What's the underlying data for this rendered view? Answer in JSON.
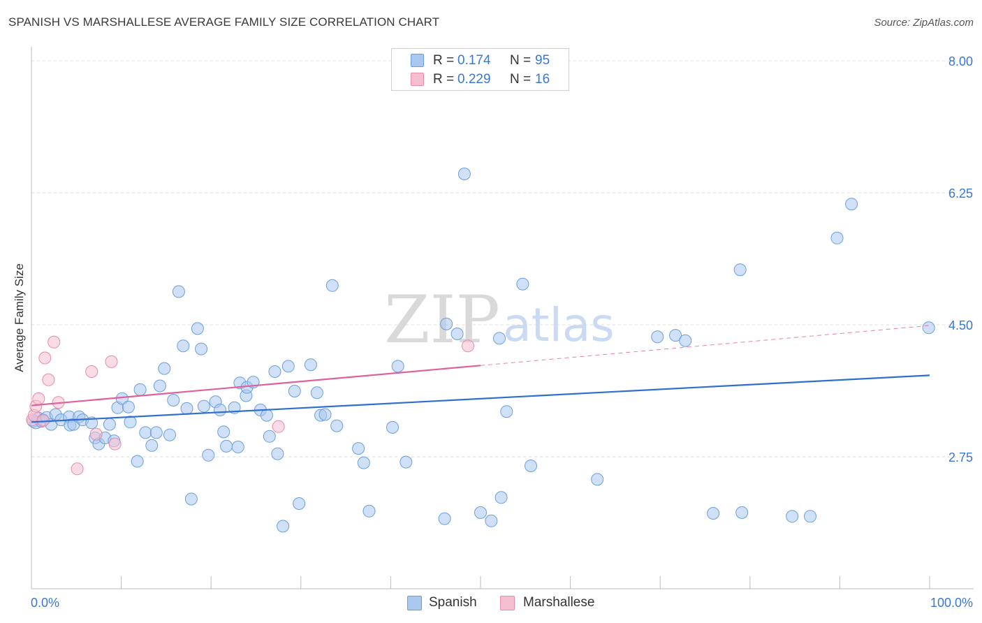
{
  "header": {
    "title": "SPANISH VS MARSHALLESE AVERAGE FAMILY SIZE CORRELATION CHART",
    "source": "Source: ZipAtlas.com"
  },
  "watermark": {
    "part1": "ZIP",
    "part2": "atlas"
  },
  "legend_top": {
    "rows": [
      {
        "r_label": "R =",
        "r_value": "0.174",
        "n_label": "N =",
        "n_value": "95"
      },
      {
        "r_label": "R =",
        "r_value": "0.229",
        "n_label": "N =",
        "n_value": "16"
      }
    ]
  },
  "legend_bottom": {
    "items": [
      {
        "label": "Spanish"
      },
      {
        "label": "Marshallese"
      }
    ]
  },
  "colors": {
    "spanish_fill": "#a9c8f0",
    "spanish_stroke": "#6a9fdc",
    "spanish_line": "#2f6fcf",
    "marsh_fill": "#f6bfd1",
    "marsh_stroke": "#e88aab",
    "marsh_line": "#e0609a",
    "axis_text": "#3a78d0",
    "grid": "#dcdcdc"
  },
  "chart_data": {
    "type": "scatter",
    "title": "SPANISH VS MARSHALLESE AVERAGE FAMILY SIZE CORRELATION CHART",
    "xlabel": "",
    "ylabel": "Average Family Size",
    "xlim": [
      0,
      100
    ],
    "ylim": [
      1.0,
      8.25
    ],
    "x_tick_labels": [
      "0.0%",
      "100.0%"
    ],
    "y_ticks": [
      2.75,
      4.5,
      6.25,
      8.0
    ],
    "y_tick_labels": [
      "2.75",
      "4.50",
      "6.25",
      "8.00"
    ],
    "grid": "horizontal dashed",
    "series": [
      {
        "name": "Spanish",
        "R": 0.174,
        "N": 95,
        "trend": {
          "x": [
            0,
            100
          ],
          "y": [
            3.21,
            3.83
          ],
          "dashed_after": null
        },
        "points": [
          [
            0.2,
            3.22
          ],
          [
            0.5,
            3.2
          ],
          [
            0.8,
            3.26
          ],
          [
            1.1,
            3.22
          ],
          [
            1.3,
            3.24
          ],
          [
            1.7,
            3.27
          ],
          [
            2.2,
            3.18
          ],
          [
            2.7,
            3.31
          ],
          [
            3.3,
            3.24
          ],
          [
            4.2,
            3.28
          ],
          [
            4.3,
            3.17
          ],
          [
            4.7,
            3.18
          ],
          [
            5.3,
            3.28
          ],
          [
            5.7,
            3.24
          ],
          [
            6.7,
            3.2
          ],
          [
            7.1,
            3.0
          ],
          [
            7.5,
            2.92
          ],
          [
            8.2,
            3.0
          ],
          [
            8.7,
            3.18
          ],
          [
            9.2,
            2.96
          ],
          [
            9.6,
            3.4
          ],
          [
            10.1,
            3.52
          ],
          [
            10.8,
            3.41
          ],
          [
            11.0,
            3.21
          ],
          [
            11.8,
            2.69
          ],
          [
            12.1,
            3.64
          ],
          [
            12.7,
            3.07
          ],
          [
            13.4,
            2.9
          ],
          [
            13.9,
            3.07
          ],
          [
            14.3,
            3.69
          ],
          [
            14.8,
            3.92
          ],
          [
            15.4,
            3.04
          ],
          [
            15.8,
            3.5
          ],
          [
            16.4,
            4.94
          ],
          [
            16.9,
            4.22
          ],
          [
            17.3,
            3.39
          ],
          [
            17.8,
            2.19
          ],
          [
            18.5,
            4.45
          ],
          [
            18.9,
            4.18
          ],
          [
            19.2,
            3.42
          ],
          [
            19.7,
            2.77
          ],
          [
            20.5,
            3.48
          ],
          [
            21.0,
            3.37
          ],
          [
            21.4,
            3.08
          ],
          [
            21.7,
            2.89
          ],
          [
            22.6,
            3.4
          ],
          [
            23.0,
            2.88
          ],
          [
            23.2,
            3.73
          ],
          [
            23.9,
            3.56
          ],
          [
            24.0,
            3.67
          ],
          [
            24.7,
            3.74
          ],
          [
            25.5,
            3.37
          ],
          [
            26.2,
            3.3
          ],
          [
            26.5,
            3.02
          ],
          [
            27.1,
            3.88
          ],
          [
            27.4,
            2.79
          ],
          [
            28.0,
            1.83
          ],
          [
            28.6,
            3.95
          ],
          [
            29.3,
            3.62
          ],
          [
            29.8,
            2.13
          ],
          [
            31.1,
            3.97
          ],
          [
            31.8,
            3.6
          ],
          [
            32.2,
            3.3
          ],
          [
            32.7,
            3.31
          ],
          [
            33.5,
            5.02
          ],
          [
            34.0,
            3.16
          ],
          [
            36.4,
            2.86
          ],
          [
            37.0,
            2.67
          ],
          [
            37.6,
            2.03
          ],
          [
            40.2,
            3.14
          ],
          [
            40.8,
            3.95
          ],
          [
            41.7,
            2.68
          ],
          [
            46.0,
            1.93
          ],
          [
            46.2,
            4.51
          ],
          [
            47.4,
            4.38
          ],
          [
            48.2,
            6.5
          ],
          [
            50.0,
            2.01
          ],
          [
            51.2,
            1.9
          ],
          [
            52.1,
            4.32
          ],
          [
            52.3,
            2.21
          ],
          [
            52.9,
            3.35
          ],
          [
            54.7,
            5.04
          ],
          [
            55.6,
            2.63
          ],
          [
            63.0,
            2.45
          ],
          [
            69.7,
            4.34
          ],
          [
            71.7,
            4.36
          ],
          [
            72.8,
            4.29
          ],
          [
            75.9,
            2.0
          ],
          [
            78.9,
            5.23
          ],
          [
            79.1,
            2.01
          ],
          [
            84.7,
            1.96
          ],
          [
            86.7,
            1.96
          ],
          [
            89.7,
            5.65
          ],
          [
            91.3,
            6.1
          ],
          [
            99.9,
            4.46
          ]
        ]
      },
      {
        "name": "Marshallese",
        "R": 0.229,
        "N": 16,
        "trend": {
          "x": [
            0,
            100
          ],
          "y": [
            3.43,
            4.49
          ],
          "solid_until_x": 50
        },
        "points": [
          [
            0.1,
            3.24
          ],
          [
            0.3,
            3.3
          ],
          [
            0.5,
            3.42
          ],
          [
            0.8,
            3.52
          ],
          [
            1.3,
            3.23
          ],
          [
            1.5,
            4.06
          ],
          [
            1.9,
            3.77
          ],
          [
            2.5,
            4.27
          ],
          [
            3.0,
            3.47
          ],
          [
            5.1,
            2.59
          ],
          [
            6.7,
            3.88
          ],
          [
            7.2,
            3.05
          ],
          [
            8.9,
            4.01
          ],
          [
            9.3,
            2.92
          ],
          [
            27.5,
            3.15
          ],
          [
            48.6,
            4.22
          ]
        ]
      }
    ]
  }
}
